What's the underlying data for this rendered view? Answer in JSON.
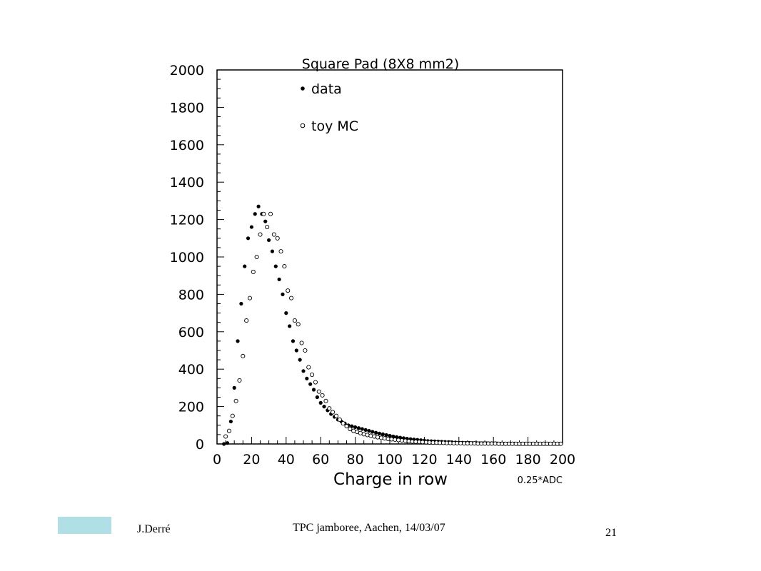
{
  "slide": {
    "author": "J.Derré",
    "event": "TPC jamboree, Aachen, 14/03/07",
    "page_number": "21",
    "accent_color": "#b0e0e6"
  },
  "chart_data": {
    "type": "scatter",
    "title": "Square Pad (8X8 mm2)",
    "xlabel": "Charge in row",
    "x_unit_label": "0.25*ADC",
    "ylabel": "",
    "xlim": [
      0,
      200
    ],
    "ylim": [
      0,
      2000
    ],
    "x_ticks": [
      0,
      20,
      40,
      60,
      80,
      100,
      120,
      140,
      160,
      180,
      200
    ],
    "y_ticks": [
      0,
      200,
      400,
      600,
      800,
      1000,
      1200,
      1400,
      1600,
      1800,
      2000
    ],
    "grid": false,
    "legend_position": "top-left",
    "series": [
      {
        "name": "data",
        "marker": "filled-circle",
        "color": "#000000",
        "x": [
          4,
          6,
          8,
          10,
          12,
          14,
          16,
          18,
          20,
          22,
          24,
          26,
          28,
          30,
          32,
          34,
          36,
          38,
          40,
          42,
          44,
          46,
          48,
          50,
          52,
          54,
          56,
          58,
          60,
          62,
          64,
          66,
          68,
          70,
          72,
          74,
          76,
          78,
          80,
          82,
          84,
          86,
          88,
          90,
          92,
          94,
          96,
          98,
          100,
          102,
          104,
          106,
          108,
          110,
          112,
          114,
          116,
          118,
          120,
          122,
          124,
          126,
          128,
          130,
          132,
          134,
          136,
          138,
          140,
          142,
          144,
          146,
          148,
          150,
          152,
          154,
          156,
          158,
          160,
          162,
          164,
          166,
          168,
          170,
          172,
          174,
          176,
          178,
          180,
          182,
          184,
          186,
          188,
          190,
          192,
          194,
          196,
          198
        ],
        "y": [
          0,
          5,
          120,
          300,
          550,
          750,
          950,
          1100,
          1160,
          1230,
          1270,
          1230,
          1190,
          1090,
          1030,
          950,
          880,
          800,
          700,
          630,
          550,
          500,
          450,
          390,
          350,
          320,
          290,
          250,
          220,
          200,
          180,
          160,
          145,
          130,
          120,
          110,
          100,
          95,
          90,
          85,
          80,
          75,
          70,
          65,
          60,
          56,
          52,
          48,
          44,
          40,
          37,
          34,
          31,
          28,
          26,
          24,
          22,
          20,
          18,
          16,
          15,
          14,
          13,
          12,
          11,
          10,
          9,
          8,
          7,
          7,
          6,
          6,
          5,
          5,
          4,
          4,
          4,
          3,
          3,
          3,
          2,
          2,
          2,
          2,
          2,
          1,
          1,
          1,
          1,
          1,
          1,
          1,
          1,
          1,
          1,
          1,
          1,
          1
        ]
      },
      {
        "name": "toy MC",
        "marker": "open-circle",
        "color": "#000000",
        "x": [
          5,
          7,
          9,
          11,
          13,
          15,
          17,
          19,
          21,
          23,
          25,
          27,
          29,
          31,
          33,
          35,
          37,
          39,
          41,
          43,
          45,
          47,
          49,
          51,
          53,
          55,
          57,
          59,
          61,
          63,
          65,
          67,
          69,
          71,
          73,
          75,
          77,
          79,
          81,
          83,
          85,
          87,
          89,
          91,
          93,
          95,
          97,
          99,
          101,
          103,
          105,
          107,
          109,
          111,
          113,
          115,
          117,
          119,
          121,
          123,
          125,
          127,
          129,
          131,
          133,
          135,
          137,
          139,
          141,
          143,
          145,
          147,
          149,
          151,
          153,
          155,
          157,
          159,
          161,
          163,
          165,
          167,
          169,
          171,
          173,
          175,
          177,
          179,
          181,
          183,
          185,
          187,
          189,
          191,
          193,
          195,
          197,
          199
        ],
        "y": [
          40,
          70,
          150,
          230,
          340,
          470,
          660,
          780,
          920,
          1000,
          1120,
          1230,
          1160,
          1230,
          1120,
          1100,
          1030,
          950,
          820,
          780,
          660,
          640,
          540,
          500,
          410,
          370,
          330,
          280,
          260,
          230,
          190,
          170,
          150,
          130,
          110,
          95,
          80,
          70,
          65,
          58,
          52,
          48,
          44,
          40,
          36,
          33,
          30,
          27,
          25,
          23,
          21,
          19,
          17,
          15,
          13,
          12,
          11,
          10,
          9,
          8,
          7,
          7,
          6,
          6,
          5,
          5,
          4,
          4,
          4,
          3,
          3,
          3,
          3,
          2,
          2,
          2,
          2,
          2,
          2,
          1,
          1,
          1,
          1,
          1,
          1,
          1,
          1,
          1,
          1,
          1,
          1,
          1,
          1,
          1,
          1,
          1,
          1,
          1
        ]
      }
    ]
  }
}
